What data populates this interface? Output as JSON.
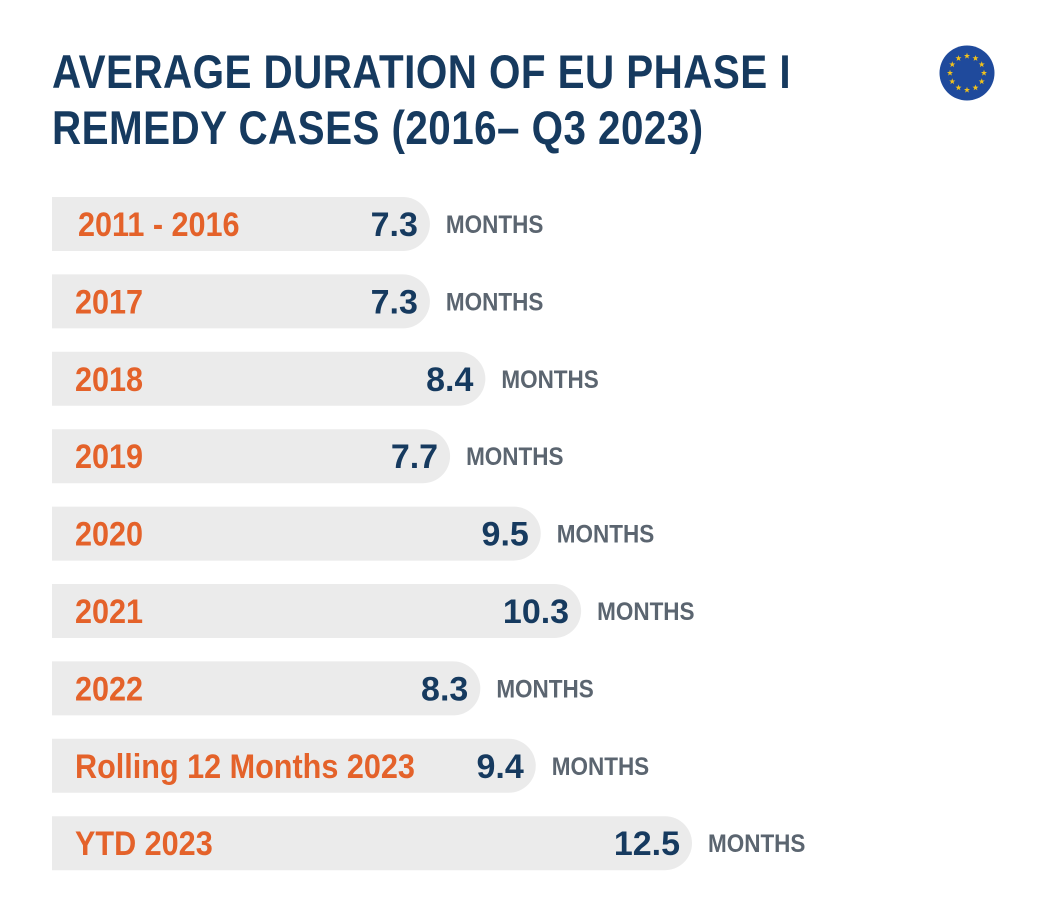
{
  "title_lines": [
    "AVERAGE DURATION OF EU PHASE I",
    "REMEDY CASES (2016– Q3 2023)"
  ],
  "logo": {
    "icon": "eu-flag-icon",
    "colors": {
      "field": "#1f4a9c",
      "stars": "#f2c21b"
    }
  },
  "colors": {
    "title": "#163a5f",
    "category": "#e4622a",
    "value": "#163a5f",
    "unit": "#5b6570",
    "bar": "#ebebeb"
  },
  "chart_data": {
    "type": "bar",
    "orientation": "horizontal",
    "title": "AVERAGE DURATION OF EU PHASE I REMEDY CASES (2016– Q3 2023)",
    "unit": "MONTHS",
    "categories": [
      "2011 - 2016",
      "2017",
      "2018",
      "2019",
      "2020",
      "2021",
      "2022",
      "Rolling 12 Months 2023",
      "YTD 2023"
    ],
    "value_labels": [
      "7.3",
      "7.3",
      "8.4",
      "7.7",
      "9.5",
      "10.3",
      "8.3",
      "9.4",
      "12.5"
    ],
    "values": [
      7.3,
      7.3,
      8.4,
      7.7,
      9.5,
      10.3,
      8.3,
      9.4,
      12.5
    ],
    "xlim": [
      0,
      12.5
    ],
    "grid": false,
    "legend": "none"
  }
}
